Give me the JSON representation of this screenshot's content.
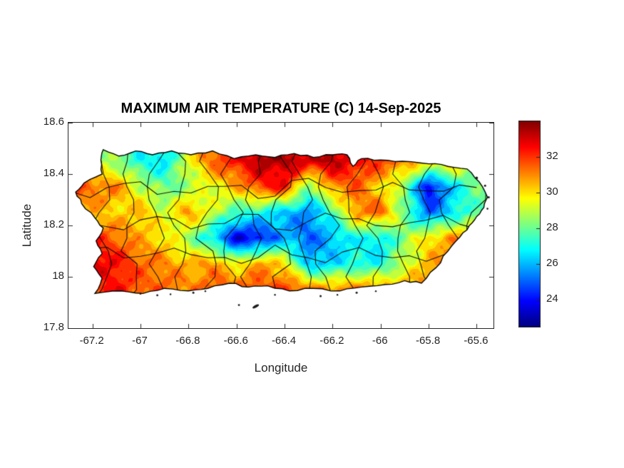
{
  "figure": {
    "background": "#ffffff"
  },
  "chart_data": {
    "type": "heatmap",
    "title": "MAXIMUM AIR TEMPERATURE (C) 14-Sep-2025",
    "xlabel": "Longitude",
    "ylabel": "Latitude",
    "region": "Puerto Rico",
    "units": "deg C",
    "xlim": [
      -67.3,
      -65.53
    ],
    "ylim": [
      17.8,
      18.6
    ],
    "xticks": {
      "values": [
        -67.2,
        -67,
        -66.8,
        -66.6,
        -66.4,
        -66.2,
        -66,
        -65.8,
        -65.6
      ],
      "labels": [
        "-67.2",
        "-67",
        "-66.8",
        "-66.6",
        "-66.4",
        "-66.2",
        "-66",
        "-65.8",
        "-65.6"
      ]
    },
    "yticks": {
      "values": [
        17.8,
        18,
        18.2,
        18.4,
        18.6
      ],
      "labels": [
        "17.8",
        "18",
        "18.2",
        "18.4",
        "18.6"
      ]
    },
    "colorbar": {
      "colormap": "jet",
      "clim": [
        22.5,
        34
      ],
      "tick_values": [
        24,
        26,
        28,
        30,
        32
      ],
      "tick_labels": [
        "24",
        "26",
        "28",
        "30",
        "32"
      ]
    },
    "grid": {
      "lons": [
        -67.2,
        -67.1,
        -67.0,
        -66.9,
        -66.8,
        -66.7,
        -66.6,
        -66.5,
        -66.4,
        -66.3,
        -66.2,
        -66.1,
        -66.0,
        -65.9,
        -65.8,
        -65.7,
        -65.6
      ],
      "lats": [
        18.45,
        18.35,
        18.25,
        18.15,
        18.05,
        17.95
      ],
      "temps_c": [
        [
          29,
          28.5,
          27,
          26.5,
          29.5,
          31.5,
          32.5,
          33.5,
          33.5,
          33,
          33.5,
          32.5,
          32,
          31,
          30.5,
          30.5,
          29
        ],
        [
          31.5,
          31,
          29,
          28,
          28.5,
          29.5,
          30.5,
          32,
          32.5,
          28,
          31,
          31.5,
          30,
          28.5,
          23.5,
          26.5,
          28
        ],
        [
          30.5,
          30,
          30.5,
          29,
          31,
          29,
          27.5,
          27,
          26,
          25.5,
          27.5,
          31,
          31.5,
          28,
          25,
          26.5,
          28
        ],
        [
          32,
          31.5,
          30.5,
          30,
          28.5,
          26.5,
          23.5,
          24,
          26,
          25,
          26,
          27,
          26.5,
          28.5,
          30,
          31,
          31
        ],
        [
          33,
          32.5,
          31.5,
          31,
          30.5,
          31,
          29.5,
          31,
          30,
          26,
          26.5,
          27,
          27,
          29,
          30.5,
          31,
          31
        ],
        [
          32,
          32.5,
          31.5,
          31.5,
          31,
          31.5,
          32,
          31.5,
          32,
          31.5,
          31,
          31.5,
          31,
          31,
          30.5,
          30.5,
          30.5
        ]
      ]
    },
    "coastline": [
      [
        -67.155,
        18.495
      ],
      [
        -67.09,
        18.47
      ],
      [
        -67.02,
        18.49
      ],
      [
        -66.95,
        18.475
      ],
      [
        -66.87,
        18.49
      ],
      [
        -66.79,
        18.475
      ],
      [
        -66.7,
        18.49
      ],
      [
        -66.61,
        18.46
      ],
      [
        -66.52,
        18.475
      ],
      [
        -66.44,
        18.465
      ],
      [
        -66.36,
        18.48
      ],
      [
        -66.28,
        18.465
      ],
      [
        -66.2,
        18.475
      ],
      [
        -66.14,
        18.475
      ],
      [
        -66.115,
        18.43
      ],
      [
        -66.08,
        18.46
      ],
      [
        -66.0,
        18.455
      ],
      [
        -65.91,
        18.45
      ],
      [
        -65.8,
        18.44
      ],
      [
        -65.72,
        18.43
      ],
      [
        -65.64,
        18.42
      ],
      [
        -65.59,
        18.37
      ],
      [
        -65.555,
        18.31
      ],
      [
        -65.57,
        18.27
      ],
      [
        -65.6,
        18.235
      ],
      [
        -65.63,
        18.2
      ],
      [
        -65.67,
        18.155
      ],
      [
        -65.72,
        18.1
      ],
      [
        -65.77,
        18.035
      ],
      [
        -65.83,
        17.975
      ],
      [
        -65.9,
        17.985
      ],
      [
        -65.98,
        17.97
      ],
      [
        -66.08,
        17.96
      ],
      [
        -66.17,
        17.945
      ],
      [
        -66.28,
        17.955
      ],
      [
        -66.38,
        17.945
      ],
      [
        -66.47,
        17.965
      ],
      [
        -66.55,
        17.96
      ],
      [
        -66.63,
        17.975
      ],
      [
        -66.72,
        17.955
      ],
      [
        -66.8,
        17.945
      ],
      [
        -66.9,
        17.955
      ],
      [
        -66.99,
        17.935
      ],
      [
        -67.08,
        17.945
      ],
      [
        -67.19,
        17.935
      ],
      [
        -67.16,
        17.995
      ],
      [
        -67.195,
        18.04
      ],
      [
        -67.16,
        18.09
      ],
      [
        -67.185,
        18.14
      ],
      [
        -67.155,
        18.19
      ],
      [
        -67.19,
        18.23
      ],
      [
        -67.245,
        18.285
      ],
      [
        -67.27,
        18.33
      ],
      [
        -67.235,
        18.365
      ],
      [
        -67.16,
        18.4
      ],
      [
        -67.165,
        18.455
      ]
    ],
    "islets": [
      [
        -66.52,
        17.885,
        3
      ],
      [
        -66.59,
        17.89,
        1.4
      ],
      [
        -67.0,
        17.935,
        1.5
      ],
      [
        -66.93,
        17.928,
        1.4
      ],
      [
        -66.875,
        17.932,
        1.2
      ],
      [
        -66.78,
        17.938,
        1.5
      ],
      [
        -66.73,
        17.944,
        1.2
      ],
      [
        -66.44,
        17.93,
        1.2
      ],
      [
        -66.25,
        17.925,
        1.5
      ],
      [
        -66.18,
        17.93,
        1.2
      ],
      [
        -66.1,
        17.938,
        1.5
      ],
      [
        -66.02,
        17.944,
        1.2
      ],
      [
        -65.6,
        18.385,
        1.8
      ],
      [
        -65.565,
        18.355,
        1.5
      ],
      [
        -65.55,
        18.31,
        1.5
      ],
      [
        -65.555,
        18.265,
        1.3
      ]
    ],
    "boundaries": {
      "style": "municipality",
      "vertical_count": 16,
      "horizontal_lats": [
        18.085,
        18.215,
        18.345
      ],
      "seed": 7
    },
    "colors": {
      "axis": "#262626",
      "coastline": "#000000",
      "boundary": "#000000",
      "title": "#000000",
      "background": "#ffffff"
    }
  }
}
